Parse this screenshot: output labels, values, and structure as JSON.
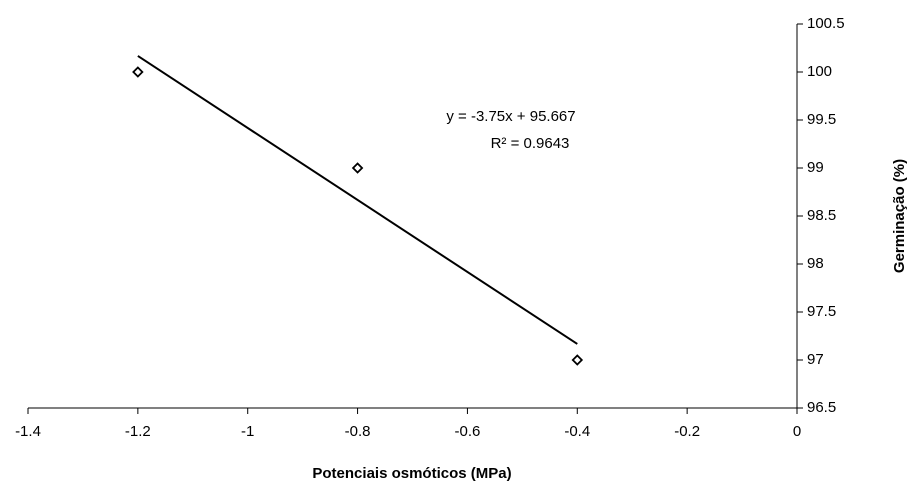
{
  "chart_data": {
    "type": "scatter",
    "x_label": "Potenciais osmóticos (MPa)",
    "y_label": "Germinação (%)",
    "annotations": [
      "y = -3.75x + 95.667",
      "R² = 0.9643"
    ],
    "x": [
      -1.2,
      -0.8,
      -0.4
    ],
    "values": [
      100,
      99,
      97
    ],
    "color": "#000000",
    "trendline": {
      "x": [
        -1.2,
        -0.4
      ],
      "values": [
        100.167,
        97.167
      ],
      "color": "#000000"
    },
    "xlim": [
      -1.4,
      0
    ],
    "xticks": [
      -1.4,
      -1.2,
      -1,
      -0.8,
      -0.6,
      -0.4,
      -0.2,
      0
    ],
    "ylim": [
      96.5,
      100.5
    ],
    "yticks": [
      96.5,
      97,
      97.5,
      98,
      98.5,
      99,
      99.5,
      100,
      100.5
    ],
    "y_axis_side": "right",
    "grid": false
  }
}
